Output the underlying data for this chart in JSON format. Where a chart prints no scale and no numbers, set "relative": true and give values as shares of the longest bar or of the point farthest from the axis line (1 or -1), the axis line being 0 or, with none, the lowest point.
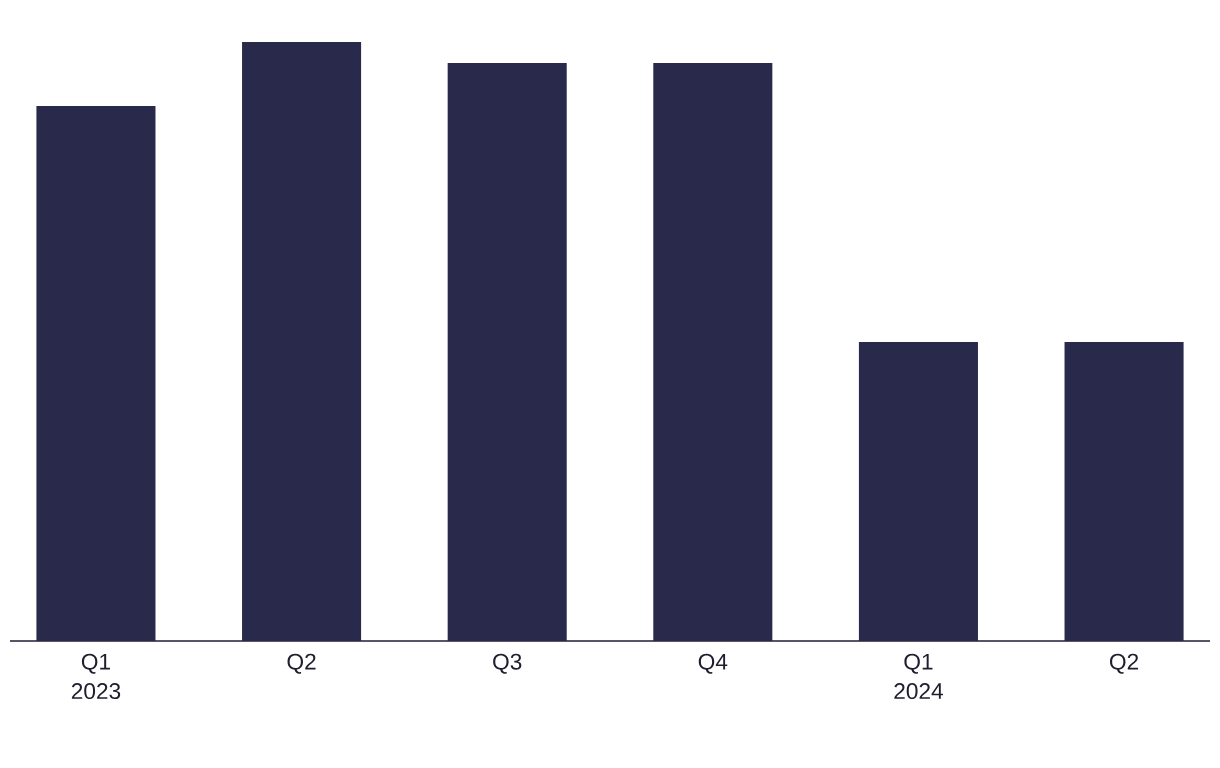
{
  "chart_data": {
    "type": "bar",
    "relative": true,
    "categories": [
      "Q1 2023",
      "Q2",
      "Q3",
      "Q4",
      "Q1 2024",
      "Q2"
    ],
    "values": [
      0.893,
      1,
      0.965,
      0.965,
      0.499,
      0.499
    ],
    "color": "#29294b"
  }
}
